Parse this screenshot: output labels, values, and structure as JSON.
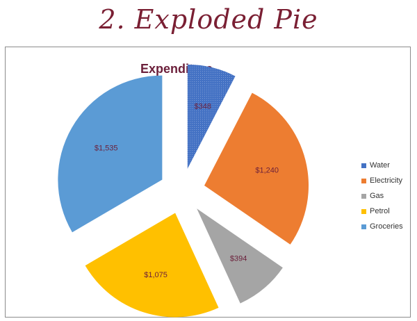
{
  "page": {
    "heading": "2. Exploded Pie"
  },
  "chart_data": {
    "type": "pie",
    "exploded": true,
    "title": "Expenditure",
    "categories": [
      "Water",
      "Electricity",
      "Gas",
      "Petrol",
      "Groceries"
    ],
    "values": [
      348,
      1240,
      394,
      1075,
      1535
    ],
    "data_labels": [
      "$348",
      "$1,240",
      "$394",
      "$1,075",
      "$1,535"
    ],
    "colors": [
      "#4472c4",
      "#ed7d31",
      "#a5a5a5",
      "#ffc000",
      "#5b9bd5"
    ],
    "legend_position": "right"
  }
}
